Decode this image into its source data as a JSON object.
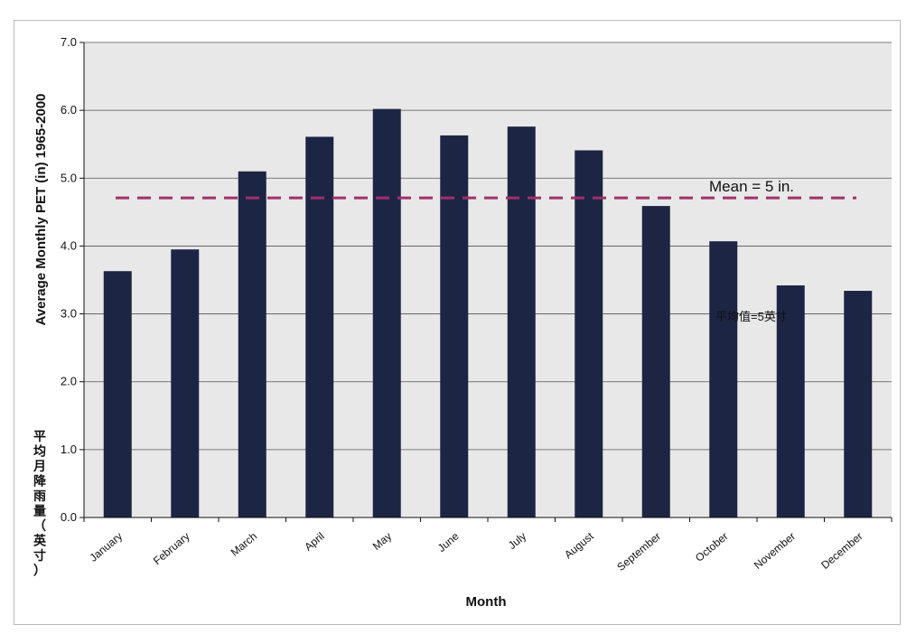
{
  "chart_data": {
    "type": "bar",
    "title": "",
    "xlabel": "Month",
    "ylabel": "Average Monthly PET (in)  1965-2000",
    "ylabel_cn_chars": [
      "平",
      "均",
      "月",
      "降",
      "雨",
      "量",
      "（",
      "英",
      "寸",
      "）"
    ],
    "categories": [
      "January",
      "February",
      "March",
      "April",
      "May",
      "June",
      "July",
      "August",
      "September",
      "October",
      "November",
      "December"
    ],
    "values": [
      3.63,
      3.95,
      5.1,
      5.61,
      6.02,
      5.63,
      5.76,
      5.41,
      4.59,
      4.07,
      3.42,
      3.34
    ],
    "ylim": [
      0,
      7
    ],
    "yticks": [
      "0.0",
      "1.0",
      "2.0",
      "3.0",
      "4.0",
      "5.0",
      "6.0",
      "7.0"
    ],
    "grid": true,
    "mean_line": {
      "value": 4.71,
      "label": "Mean = 5 in.",
      "label_cn": "平均值=5英寸"
    },
    "colors": {
      "bar": "#1d2545",
      "mean_line": "#a0306a",
      "plot_bg": "#e8e8e8",
      "grid": "#555555"
    }
  }
}
